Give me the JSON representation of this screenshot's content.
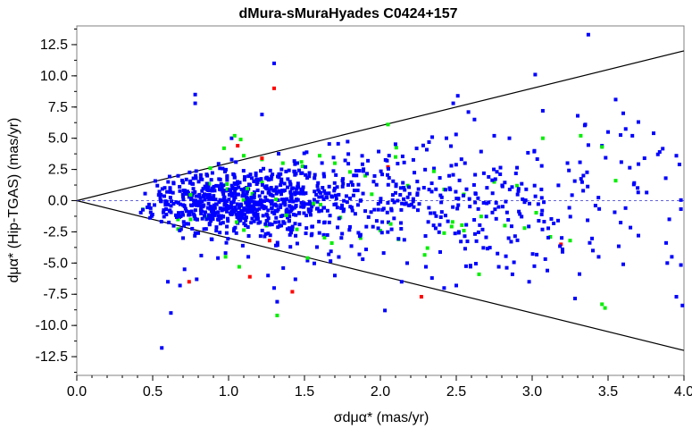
{
  "chart_data": {
    "type": "scatter",
    "title": "dMura-sMuraHyades  C0424+157",
    "xlabel": "σdμα* (mas/yr)",
    "ylabel": "dμα* (Hip-TGAS) (mas/yr)",
    "xlim": [
      0.0,
      4.0
    ],
    "ylim": [
      -14.0,
      14.0
    ],
    "xticks": [
      "0.0",
      "0.5",
      "1.0",
      "1.5",
      "2.0",
      "2.5",
      "3.0",
      "3.5",
      "4.0"
    ],
    "yticks": [
      "12.5",
      "10.0",
      "7.5",
      "5.0",
      "2.5",
      "0.0",
      "-2.5",
      "-5.0",
      "-7.5",
      "-10.0",
      "-12.5"
    ],
    "grid": false,
    "reference_lines": [
      {
        "style": "solid",
        "color": "#000000",
        "slope": 3.0
      },
      {
        "style": "solid",
        "color": "#000000",
        "slope": -3.0
      },
      {
        "style": "dashed",
        "color": "#3333cc",
        "y": 0.0
      }
    ],
    "series": [
      {
        "color": "#0000ff",
        "points": [
          [
            0.56,
            -11.8
          ],
          [
            0.62,
            -9.0
          ],
          [
            0.6,
            -6.5
          ],
          [
            0.68,
            -6.8
          ],
          [
            0.71,
            -5.5
          ],
          [
            0.7,
            -3.0
          ],
          [
            0.78,
            8.5
          ],
          [
            0.78,
            7.8
          ],
          [
            0.79,
            -6.3
          ],
          [
            0.82,
            -4.4
          ],
          [
            0.93,
            -4.6
          ],
          [
            0.98,
            -4.2
          ],
          [
            1.02,
            5.0
          ],
          [
            1.13,
            -4.5
          ],
          [
            1.22,
            6.9
          ],
          [
            1.3,
            11.0
          ],
          [
            1.3,
            -7.0
          ],
          [
            1.26,
            -6.0
          ],
          [
            1.32,
            -8.1
          ],
          [
            1.36,
            -5.4
          ],
          [
            1.44,
            -6.3
          ],
          [
            1.52,
            -4.8
          ],
          [
            1.66,
            -4.3
          ],
          [
            1.7,
            -6.0
          ],
          [
            2.03,
            -8.8
          ],
          [
            2.14,
            -6.5
          ],
          [
            2.3,
            -5.3
          ],
          [
            2.34,
            -6.2
          ],
          [
            2.42,
            -7.0
          ],
          [
            2.5,
            -6.8
          ],
          [
            2.51,
            8.4
          ],
          [
            2.48,
            7.8
          ],
          [
            2.58,
            7.1
          ],
          [
            2.62,
            6.5
          ],
          [
            2.75,
            5.2
          ],
          [
            2.85,
            5.0
          ],
          [
            2.78,
            -5.3
          ],
          [
            2.87,
            -5.9
          ],
          [
            2.98,
            -6.5
          ],
          [
            3.02,
            10.1
          ],
          [
            3.07,
            7.2
          ],
          [
            3.1,
            -5.6
          ],
          [
            3.2,
            -4.1
          ],
          [
            3.3,
            6.8
          ],
          [
            3.37,
            13.3
          ],
          [
            3.35,
            6.1
          ],
          [
            3.46,
            4.4
          ],
          [
            3.5,
            5.5
          ],
          [
            3.55,
            8.1
          ],
          [
            3.6,
            7.0
          ],
          [
            3.66,
            5.2
          ],
          [
            3.7,
            6.3
          ],
          [
            3.74,
            3.4
          ],
          [
            3.8,
            5.4
          ],
          [
            3.84,
            3.9
          ],
          [
            3.88,
            1.8
          ],
          [
            3.95,
            3.6
          ],
          [
            3.97,
            2.9
          ],
          [
            3.89,
            -5.0
          ],
          [
            3.92,
            -4.5
          ],
          [
            3.95,
            -7.7
          ],
          [
            3.99,
            -8.4
          ],
          [
            3.6,
            -5.1
          ],
          [
            3.4,
            -4.0
          ],
          [
            3.2,
            -3.9
          ],
          [
            3.7,
            -2.8
          ]
        ]
      },
      {
        "color": "#00ee00",
        "points": [
          [
            0.88,
            2.6
          ],
          [
            0.97,
            4.2
          ],
          [
            1.04,
            5.2
          ],
          [
            1.08,
            4.9
          ],
          [
            1.1,
            3.6
          ],
          [
            1.22,
            3.3
          ],
          [
            1.48,
            3.1
          ],
          [
            1.6,
            3.6
          ],
          [
            1.7,
            3.0
          ],
          [
            1.8,
            2.3
          ],
          [
            1.9,
            2.0
          ],
          [
            2.05,
            6.1
          ],
          [
            2.1,
            3.5
          ],
          [
            2.18,
            1.2
          ],
          [
            2.42,
            0.9
          ],
          [
            2.55,
            0.5
          ],
          [
            2.75,
            1.5
          ],
          [
            2.9,
            1.2
          ],
          [
            3.07,
            5.0
          ],
          [
            3.32,
            5.2
          ],
          [
            3.46,
            4.3
          ],
          [
            3.55,
            1.6
          ],
          [
            0.98,
            -4.5
          ],
          [
            1.07,
            -5.3
          ],
          [
            1.32,
            -9.2
          ],
          [
            1.52,
            -4.6
          ],
          [
            1.68,
            -3.4
          ],
          [
            1.87,
            -3.0
          ],
          [
            2.0,
            -2.4
          ],
          [
            2.12,
            -3.1
          ],
          [
            2.31,
            -3.8
          ],
          [
            2.42,
            -2.6
          ],
          [
            2.55,
            -2.4
          ],
          [
            2.65,
            -5.9
          ],
          [
            2.82,
            -2.0
          ],
          [
            2.95,
            -2.2
          ],
          [
            3.12,
            -2.9
          ],
          [
            3.25,
            -3.2
          ],
          [
            3.46,
            -8.3
          ],
          [
            3.48,
            -8.6
          ],
          [
            1.25,
            -2.0
          ],
          [
            1.45,
            -2.3
          ],
          [
            0.75,
            -1.5
          ],
          [
            0.85,
            -1.3
          ]
        ]
      },
      {
        "color": "#ff0000",
        "points": [
          [
            1.06,
            4.4
          ],
          [
            1.22,
            3.4
          ],
          [
            1.3,
            9.0
          ],
          [
            1.14,
            -6.1
          ],
          [
            1.42,
            -7.3
          ],
          [
            0.74,
            -6.5
          ],
          [
            1.27,
            -3.2
          ],
          [
            2.27,
            -7.7
          ],
          [
            3.19,
            -3.5
          ],
          [
            2.05,
            2.7
          ]
        ]
      }
    ]
  }
}
